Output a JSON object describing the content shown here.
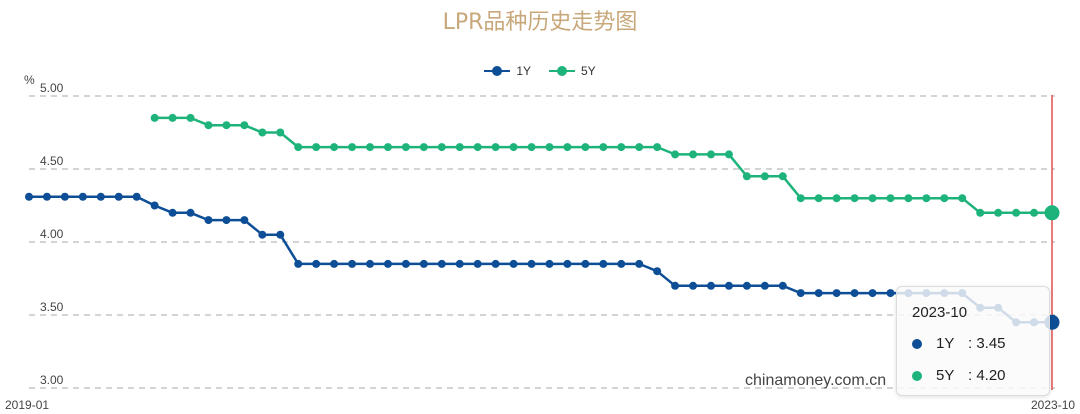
{
  "title": "LPR品种历史走势图",
  "legend": [
    {
      "label": "1Y",
      "color": "#0d4e96"
    },
    {
      "label": "5Y",
      "color": "#1db37a"
    }
  ],
  "y_axis": {
    "unit": "%",
    "ticks": [
      "5.00",
      "4.50",
      "4.00",
      "3.50",
      "3.00"
    ]
  },
  "x_axis": {
    "start_label": "2019-01",
    "end_label": "2023-10"
  },
  "tooltip": {
    "title": "2023-10",
    "rows": [
      {
        "name": "1Y",
        "value": ": 3.45",
        "color": "#0d4e96"
      },
      {
        "name": "5Y",
        "value": ": 4.20",
        "color": "#1db37a"
      }
    ]
  },
  "watermark": "chinamoney.com.cn",
  "chart_data": {
    "type": "line",
    "title": "LPR品种历史走势图",
    "xlabel": "",
    "ylabel": "%",
    "ylim": [
      3.0,
      5.0
    ],
    "grid": true,
    "legend_position": "top",
    "x_range": [
      "2019-01",
      "2023-10"
    ],
    "x": [
      "2019-01",
      "2019-02",
      "2019-03",
      "2019-04",
      "2019-05",
      "2019-06",
      "2019-07",
      "2019-08",
      "2019-09",
      "2019-10",
      "2019-11",
      "2019-12",
      "2020-01",
      "2020-02",
      "2020-03",
      "2020-04",
      "2020-05",
      "2020-06",
      "2020-07",
      "2020-08",
      "2020-09",
      "2020-10",
      "2020-11",
      "2020-12",
      "2021-01",
      "2021-02",
      "2021-03",
      "2021-04",
      "2021-05",
      "2021-06",
      "2021-07",
      "2021-08",
      "2021-09",
      "2021-10",
      "2021-11",
      "2021-12",
      "2022-01",
      "2022-02",
      "2022-03",
      "2022-04",
      "2022-05",
      "2022-06",
      "2022-07",
      "2022-08",
      "2022-09",
      "2022-10",
      "2022-11",
      "2022-12",
      "2023-01",
      "2023-02",
      "2023-03",
      "2023-04",
      "2023-05",
      "2023-06",
      "2023-07",
      "2023-08",
      "2023-09",
      "2023-10"
    ],
    "series": [
      {
        "name": "1Y",
        "color": "#0d4e96",
        "values": [
          4.31,
          4.31,
          4.31,
          4.31,
          4.31,
          4.31,
          4.31,
          4.25,
          4.2,
          4.2,
          4.15,
          4.15,
          4.15,
          4.05,
          4.05,
          3.85,
          3.85,
          3.85,
          3.85,
          3.85,
          3.85,
          3.85,
          3.85,
          3.85,
          3.85,
          3.85,
          3.85,
          3.85,
          3.85,
          3.85,
          3.85,
          3.85,
          3.85,
          3.85,
          3.85,
          3.8,
          3.7,
          3.7,
          3.7,
          3.7,
          3.7,
          3.7,
          3.7,
          3.65,
          3.65,
          3.65,
          3.65,
          3.65,
          3.65,
          3.65,
          3.65,
          3.65,
          3.65,
          3.55,
          3.55,
          3.45,
          3.45,
          3.45
        ]
      },
      {
        "name": "5Y",
        "color": "#1db37a",
        "values": [
          null,
          null,
          null,
          null,
          null,
          null,
          null,
          4.85,
          4.85,
          4.85,
          4.8,
          4.8,
          4.8,
          4.75,
          4.75,
          4.65,
          4.65,
          4.65,
          4.65,
          4.65,
          4.65,
          4.65,
          4.65,
          4.65,
          4.65,
          4.65,
          4.65,
          4.65,
          4.65,
          4.65,
          4.65,
          4.65,
          4.65,
          4.65,
          4.65,
          4.65,
          4.6,
          4.6,
          4.6,
          4.6,
          4.45,
          4.45,
          4.45,
          4.3,
          4.3,
          4.3,
          4.3,
          4.3,
          4.3,
          4.3,
          4.3,
          4.3,
          4.3,
          4.2,
          4.2,
          4.2,
          4.2,
          4.2
        ]
      }
    ]
  }
}
